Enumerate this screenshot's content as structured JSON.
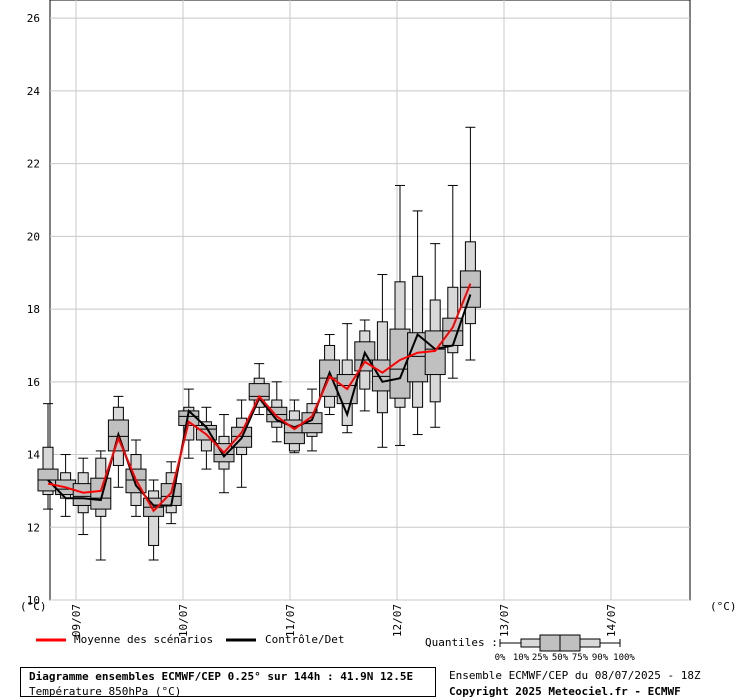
{
  "chart_data": {
    "type": "box",
    "ylabel": "(°C)",
    "ylabel_right": "(°C)",
    "ylim": [
      10,
      26.5
    ],
    "yticks": [
      10,
      12,
      14,
      16,
      18,
      20,
      22,
      24,
      26
    ],
    "xlabels": [
      "09/07",
      "10/07",
      "11/07",
      "12/07",
      "13/07",
      "14/07"
    ],
    "grid": true,
    "legend": {
      "mean_label": "Moyenne des scénarios",
      "mean_color": "#ff0000",
      "control_label": "Contrôle/Det",
      "control_color": "#000000",
      "quantiles_label": "Quantiles :",
      "quantile_ticks": [
        "0%",
        "10%",
        "25%",
        "50%",
        "75%",
        "90%",
        "100%"
      ]
    },
    "box_colors": {
      "inner": "#c0c0c0",
      "outer": "#d8d8d8"
    },
    "boxes": [
      {
        "min": 12.5,
        "p10": 12.9,
        "p25": 13.0,
        "median": 13.3,
        "p75": 13.6,
        "p90": 14.2,
        "max": 15.4
      },
      {
        "min": 12.3,
        "p10": 12.8,
        "p25": 12.9,
        "median": 13.05,
        "p75": 13.3,
        "p90": 13.5,
        "max": 14.0
      },
      {
        "min": 11.8,
        "p10": 12.4,
        "p25": 12.6,
        "median": 12.85,
        "p75": 13.2,
        "p90": 13.5,
        "max": 13.9
      },
      {
        "min": 11.1,
        "p10": 12.3,
        "p25": 12.5,
        "median": 12.8,
        "p75": 13.35,
        "p90": 13.9,
        "max": 14.1
      },
      {
        "min": 13.1,
        "p10": 13.7,
        "p25": 14.1,
        "median": 14.5,
        "p75": 14.95,
        "p90": 15.3,
        "max": 15.6
      },
      {
        "min": 12.3,
        "p10": 12.6,
        "p25": 12.95,
        "median": 13.3,
        "p75": 13.6,
        "p90": 14.0,
        "max": 14.4
      },
      {
        "min": 11.1,
        "p10": 11.5,
        "p25": 12.3,
        "median": 12.55,
        "p75": 12.8,
        "p90": 13.0,
        "max": 13.3
      },
      {
        "min": 12.1,
        "p10": 12.4,
        "p25": 12.6,
        "median": 12.85,
        "p75": 13.2,
        "p90": 13.5,
        "max": 13.8
      },
      {
        "min": 13.9,
        "p10": 14.4,
        "p25": 14.8,
        "median": 15.05,
        "p75": 15.2,
        "p90": 15.3,
        "max": 15.8
      },
      {
        "min": 13.6,
        "p10": 14.1,
        "p25": 14.4,
        "median": 14.7,
        "p75": 14.8,
        "p90": 14.9,
        "max": 15.3
      },
      {
        "min": 12.95,
        "p10": 13.6,
        "p25": 13.8,
        "median": 14.0,
        "p75": 14.3,
        "p90": 14.5,
        "max": 15.1
      },
      {
        "min": 13.1,
        "p10": 14.0,
        "p25": 14.2,
        "median": 14.5,
        "p75": 14.75,
        "p90": 15.0,
        "max": 15.5
      },
      {
        "min": 15.1,
        "p10": 15.3,
        "p25": 15.5,
        "median": 15.6,
        "p75": 15.95,
        "p90": 16.1,
        "max": 16.5
      },
      {
        "min": 14.35,
        "p10": 14.75,
        "p25": 14.9,
        "median": 15.1,
        "p75": 15.3,
        "p90": 15.5,
        "max": 16.0
      },
      {
        "min": 14.05,
        "p10": 14.1,
        "p25": 14.3,
        "median": 14.6,
        "p75": 14.95,
        "p90": 15.2,
        "max": 15.5
      },
      {
        "min": 14.1,
        "p10": 14.5,
        "p25": 14.6,
        "median": 14.85,
        "p75": 15.15,
        "p90": 15.4,
        "max": 15.8
      },
      {
        "min": 15.1,
        "p10": 15.3,
        "p25": 15.6,
        "median": 16.1,
        "p75": 16.6,
        "p90": 17.0,
        "max": 17.3
      },
      {
        "min": 14.6,
        "p10": 14.8,
        "p25": 15.4,
        "median": 15.9,
        "p75": 16.2,
        "p90": 16.6,
        "max": 17.6
      },
      {
        "min": 15.2,
        "p10": 15.8,
        "p25": 16.3,
        "median": 16.6,
        "p75": 17.1,
        "p90": 17.4,
        "max": 17.7
      },
      {
        "min": 14.2,
        "p10": 15.15,
        "p25": 15.75,
        "median": 16.15,
        "p75": 16.6,
        "p90": 17.65,
        "max": 18.95
      },
      {
        "min": 14.25,
        "p10": 15.3,
        "p25": 15.55,
        "median": 16.35,
        "p75": 17.45,
        "p90": 18.75,
        "max": 21.4
      },
      {
        "min": 14.55,
        "p10": 15.3,
        "p25": 16.0,
        "median": 16.7,
        "p75": 17.35,
        "p90": 18.9,
        "max": 20.7
      },
      {
        "min": 14.75,
        "p10": 15.45,
        "p25": 16.2,
        "median": 16.9,
        "p75": 17.4,
        "p90": 18.25,
        "max": 19.8
      },
      {
        "min": 16.1,
        "p10": 16.8,
        "p25": 17.0,
        "median": 17.4,
        "p75": 17.75,
        "p90": 18.6,
        "max": 21.4
      },
      {
        "min": 16.6,
        "p10": 17.6,
        "p25": 18.05,
        "median": 18.6,
        "p75": 19.05,
        "p90": 19.85,
        "max": 23.0
      }
    ],
    "mean": [
      13.2,
      13.1,
      12.95,
      13.0,
      14.45,
      13.3,
      12.45,
      12.95,
      14.9,
      14.55,
      14.05,
      14.6,
      15.6,
      15.05,
      14.7,
      15.05,
      16.15,
      15.8,
      16.55,
      16.25,
      16.6,
      16.8,
      16.85,
      17.5,
      18.7
    ],
    "control": [
      13.3,
      12.8,
      12.8,
      12.75,
      14.55,
      13.15,
      12.6,
      12.6,
      15.2,
      14.75,
      13.95,
      14.45,
      15.55,
      14.95,
      14.75,
      14.95,
      16.25,
      15.1,
      16.8,
      16.0,
      16.1,
      17.3,
      16.9,
      17.0,
      18.4
    ]
  },
  "footer": {
    "title_line1": "Diagramme ensembles ECMWF/CEP 0.25° sur 144h : 41.9N 12.5E",
    "title_line2": "Température 850hPa (°C)",
    "run_info": "Ensemble ECMWF/CEP du 08/07/2025 - 18Z",
    "copyright": "Copyright 2025 Meteociel.fr - ECMWF"
  }
}
